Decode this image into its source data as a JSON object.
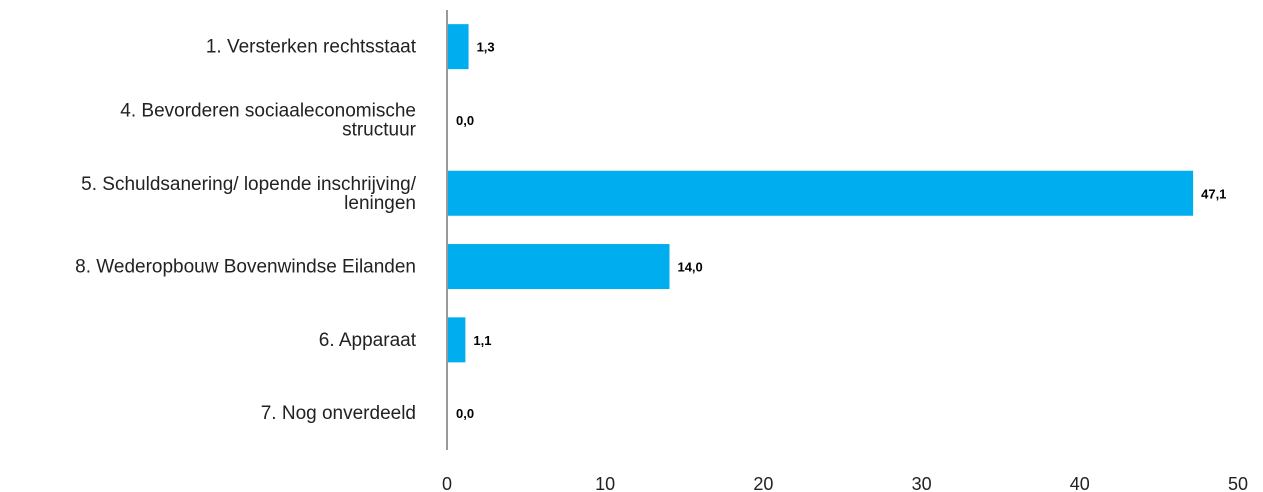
{
  "chart_data": {
    "type": "bar",
    "orientation": "horizontal",
    "categories": [
      "1. Versterken rechtsstaat",
      "4. Bevorderen sociaaleconomische structuur",
      "5. Schuldsanering/ lopende inschrijving/ leningen",
      "8. Wederopbouw Bovenwindse Eilanden",
      "6. Apparaat",
      "7. Nog onverdeeld"
    ],
    "category_lines": [
      [
        "1. Versterken rechtsstaat"
      ],
      [
        "4. Bevorderen sociaaleconomische",
        "structuur"
      ],
      [
        "5. Schuldsanering/ lopende inschrijving/",
        "leningen"
      ],
      [
        "8. Wederopbouw Bovenwindse Eilanden"
      ],
      [
        "6. Apparaat"
      ],
      [
        "7. Nog onverdeeld"
      ]
    ],
    "values": [
      1.3,
      0.0,
      47.1,
      14.0,
      1.1,
      0.0
    ],
    "value_labels": [
      "1,3",
      "0,0",
      "47,1",
      "14,0",
      "1,1",
      "0,0"
    ],
    "xlim": [
      0,
      50
    ],
    "xticks": [
      0,
      10,
      20,
      30,
      40,
      50
    ],
    "xtick_labels": [
      "0",
      "10",
      "20",
      "30",
      "40",
      "50"
    ],
    "title": "",
    "xlabel": "",
    "ylabel": "",
    "grid": false,
    "legend": "none",
    "bar_color": "#00AEEF"
  }
}
